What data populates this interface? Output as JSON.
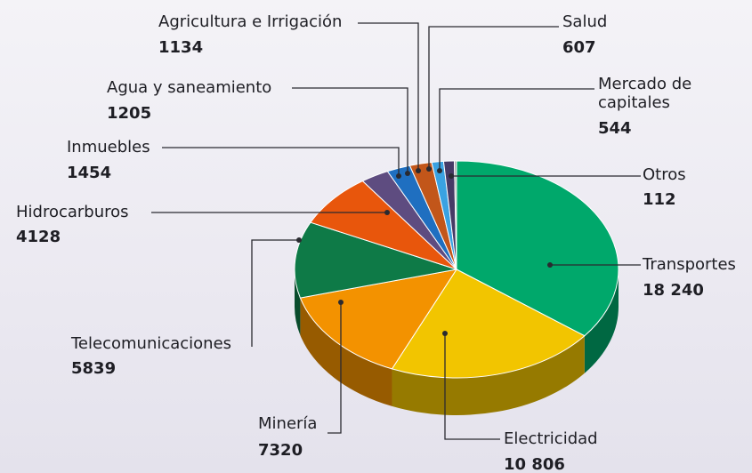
{
  "chart_data": {
    "type": "pie",
    "categories": [
      "Transportes",
      "Electricidad",
      "Minería",
      "Telecomunicaciones",
      "Hidrocarburos",
      "Inmuebles",
      "Agua y saneamiento",
      "Agricultura e Irrigación",
      "Salud",
      "Mercado de capitales",
      "Otros"
    ],
    "values": [
      18240,
      10806,
      7320,
      5839,
      4128,
      1454,
      1205,
      1134,
      607,
      544,
      112
    ],
    "value_labels": [
      "18 240",
      "10 806",
      "7320",
      "5839",
      "4128",
      "1454",
      "1205",
      "1134",
      "607",
      "544",
      "112"
    ],
    "colors": [
      "#00a86b",
      "#f2c500",
      "#f39200",
      "#0e7a47",
      "#e8560c",
      "#5e4c80",
      "#1f6fc0",
      "#c2561a",
      "#3aa2e2",
      "#463a66",
      "#a5a5a8"
    ]
  }
}
